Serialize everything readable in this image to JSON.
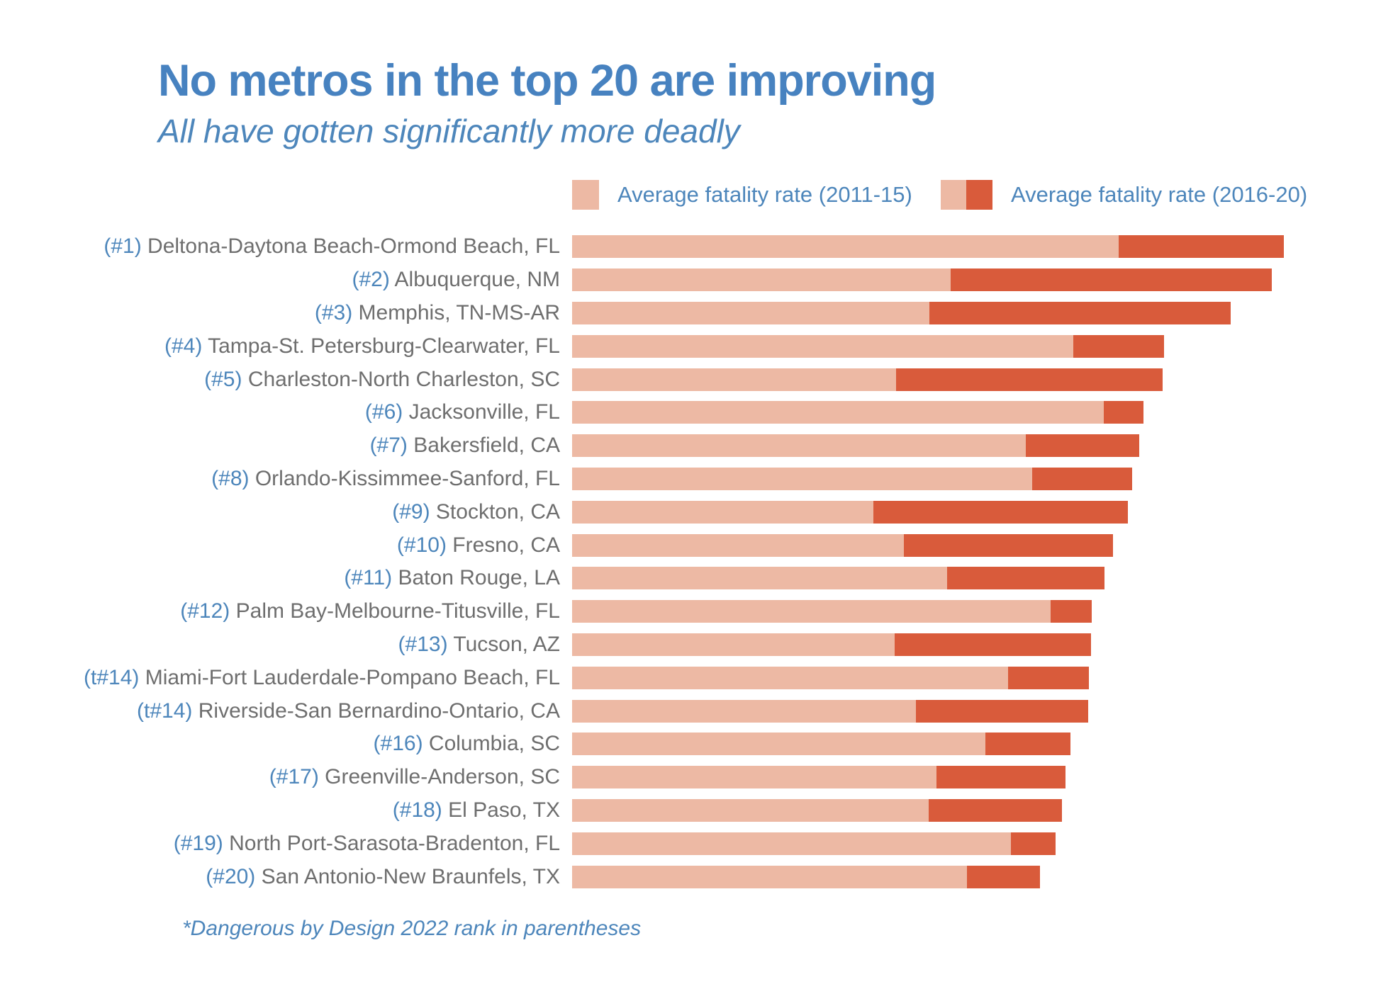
{
  "header": {
    "title": "No metros in the top 20 are improving",
    "subtitle": "All have gotten significantly more deadly"
  },
  "legend": [
    {
      "label": "Average fatality rate (2011-15)",
      "swatch": "light"
    },
    {
      "label": "Average fatality rate (2016-20)",
      "swatch": "light-dark"
    }
  ],
  "footnote": "*Dangerous by Design 2022 rank in parentheses",
  "colors": {
    "bar_light": "#edb9a4",
    "bar_dark": "#d95b3b",
    "title_blue": "#4782c0",
    "accent_blue": "#4d86bb",
    "label_gray": "#6e6e6e"
  },
  "chart_data": {
    "type": "bar",
    "orientation": "horizontal",
    "title": "No metros in the top 20 are improving",
    "subtitle": "All have gotten significantly more deadly",
    "legend_position": "top",
    "axis_visible": false,
    "grid": false,
    "value_unit": "percent_of_longest_total_bar",
    "xlim": [
      0,
      100
    ],
    "ranks": [
      "(#1)",
      "(#2)",
      "(#3)",
      "(#4)",
      "(#5)",
      "(#6)",
      "(#7)",
      "(#8)",
      "(#9)",
      "(#10)",
      "(#11)",
      "(#12)",
      "(#13)",
      "(t#14)",
      "(t#14)",
      "(#16)",
      "(#17)",
      "(#18)",
      "(#19)",
      "(#20)"
    ],
    "categories": [
      "Deltona-Daytona Beach-Ormond Beach, FL",
      "Albuquerque, NM",
      "Memphis, TN-MS-AR",
      "Tampa-St. Petersburg-Clearwater, FL",
      "Charleston-North Charleston, SC",
      "Jacksonville, FL",
      "Bakersfield, CA",
      "Orlando-Kissimmee-Sanford, FL",
      "Stockton, CA",
      "Fresno, CA",
      "Baton Rouge, LA",
      "Palm Bay-Melbourne-Titusville, FL",
      "Tucson, AZ",
      "Miami-Fort Lauderdale-Pompano Beach, FL",
      "Riverside-San Bernardino-Ontario, CA",
      "Columbia, SC",
      "Greenville-Anderson, SC",
      "El Paso, TX",
      "North Port-Sarasota-Bradenton, FL",
      "San Antonio-New Braunfels, TX"
    ],
    "series": [
      {
        "name": "Average fatality rate (2011-15)",
        "values": [
          76.8,
          53.2,
          50.2,
          70.4,
          45.5,
          74.7,
          63.7,
          64.6,
          42.3,
          46.6,
          52.7,
          67.2,
          45.3,
          61.3,
          48.3,
          58.1,
          51.2,
          50.1,
          61.7,
          55.5
        ]
      },
      {
        "name": "Average fatality rate (2016-20)",
        "values": [
          100.0,
          98.3,
          92.5,
          83.2,
          83.0,
          80.3,
          79.7,
          78.7,
          78.1,
          76.0,
          74.8,
          73.0,
          72.9,
          72.6,
          72.5,
          70.0,
          69.3,
          68.8,
          67.9,
          65.7
        ]
      }
    ]
  }
}
